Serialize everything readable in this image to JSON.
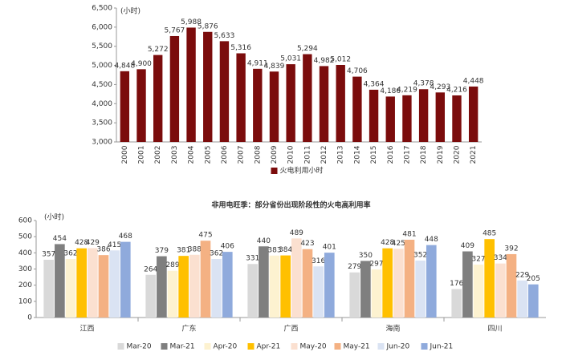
{
  "chart_data": [
    {
      "type": "bar",
      "y_unit_label": "(小时)",
      "categories": [
        "2000",
        "2001",
        "2002",
        "2003",
        "2004",
        "2005",
        "2006",
        "2007",
        "2008",
        "2009",
        "2010",
        "2011",
        "2012",
        "2013",
        "2014",
        "2015",
        "2016",
        "2017",
        "2018",
        "2019",
        "2020",
        "2021"
      ],
      "series": [
        {
          "name": "火电利用小时",
          "color": "#7b0c0c",
          "values": [
            4848,
            4900,
            5272,
            5767,
            5988,
            5876,
            5633,
            5316,
            4911,
            4839,
            5031,
            5294,
            4982,
            5012,
            4706,
            4364,
            4186,
            4219,
            4378,
            4293,
            4216,
            4448
          ],
          "value_labels": [
            "4,848",
            "4,900",
            "5,272",
            "5,767",
            "5,988",
            "5,876",
            "5,633",
            "5,316",
            "4,911",
            "4,839",
            "5,031",
            "5,294",
            "4,982",
            "5,012",
            "4,706",
            "4,364",
            "4,186",
            "4,219",
            "4,378",
            "4,293",
            "4,216",
            "4,448"
          ]
        }
      ],
      "ylim": [
        3000,
        6500
      ],
      "yticks": [
        {
          "value": 3000,
          "label": "3,000"
        },
        {
          "value": 3500,
          "label": "3,500"
        },
        {
          "value": 4000,
          "label": "4,000"
        },
        {
          "value": 4500,
          "label": "4,500"
        },
        {
          "value": 5000,
          "label": "5,000"
        },
        {
          "value": 5500,
          "label": "5,500"
        },
        {
          "value": 6000,
          "label": "6,000"
        },
        {
          "value": 6500,
          "label": "6,500"
        }
      ],
      "legend": "bottom"
    },
    {
      "type": "bar",
      "title": "非用电旺季：部分省份出现阶段性的火电高利用率",
      "y_unit_label": "(小时)",
      "categories": [
        "江西",
        "广东",
        "广西",
        "海南",
        "四川"
      ],
      "series": [
        {
          "name": "Mar-20",
          "color": "#d9d9d9",
          "values": [
            357,
            264,
            331,
            279,
            176
          ]
        },
        {
          "name": "Mar-21",
          "color": "#7f7f7f",
          "values": [
            454,
            379,
            440,
            350,
            409
          ]
        },
        {
          "name": "Apr-20",
          "color": "#fdf2d0",
          "values": [
            362,
            289,
            383,
            297,
            327
          ]
        },
        {
          "name": "Apr-21",
          "color": "#ffc000",
          "values": [
            428,
            381,
            384,
            428,
            485
          ]
        },
        {
          "name": "May-20",
          "color": "#fbe0d0",
          "values": [
            429,
            388,
            489,
            425,
            334
          ]
        },
        {
          "name": "May-21",
          "color": "#f4b183",
          "values": [
            386,
            475,
            423,
            481,
            392
          ]
        },
        {
          "name": "Jun-20",
          "color": "#dae3f3",
          "values": [
            415,
            362,
            316,
            352,
            229
          ]
        },
        {
          "name": "Jun-21",
          "color": "#8faadc",
          "values": [
            468,
            406,
            401,
            448,
            205
          ]
        }
      ],
      "ylim": [
        0,
        600
      ],
      "yticks": [
        0,
        100,
        200,
        300,
        400,
        500,
        600
      ],
      "legend": "bottom"
    }
  ]
}
